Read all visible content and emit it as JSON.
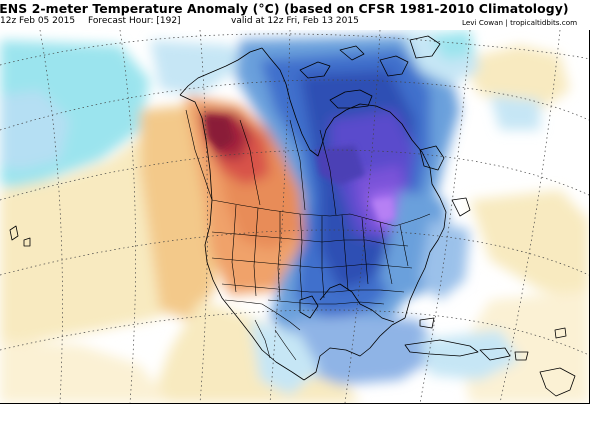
{
  "header": {
    "title": "-ENS 2-meter Temperature Anomaly (°C) (based on CFSR 1981-2010 Climatology)",
    "init": "12z Feb 05 2015",
    "forecast_hour": "Forecast Hour: [192]",
    "valid": "valid at 12z Fri, Feb 13 2015",
    "credit": "Levi Cowan | tropicaltidbits.com"
  },
  "map": {
    "colors": {
      "background_neutral": "#ffffff",
      "warm_light": "#f8eac0",
      "warm_mid": "#f3c98a",
      "warm_orange": "#e88c58",
      "warm_red": "#c8374a",
      "warm_deep": "#a0213c",
      "cool_cyan": "#9be4ee",
      "cool_light": "#c6e6f5",
      "cool_mid": "#6aa0dc",
      "cool_blue": "#3f6fcc",
      "cool_dark": "#2f4fb4",
      "cool_purple": "#7a53d9",
      "cool_violet": "#a46ef0"
    },
    "features": [
      "coastlines",
      "country-borders",
      "us-state-borders",
      "lat-lon-grid"
    ]
  }
}
